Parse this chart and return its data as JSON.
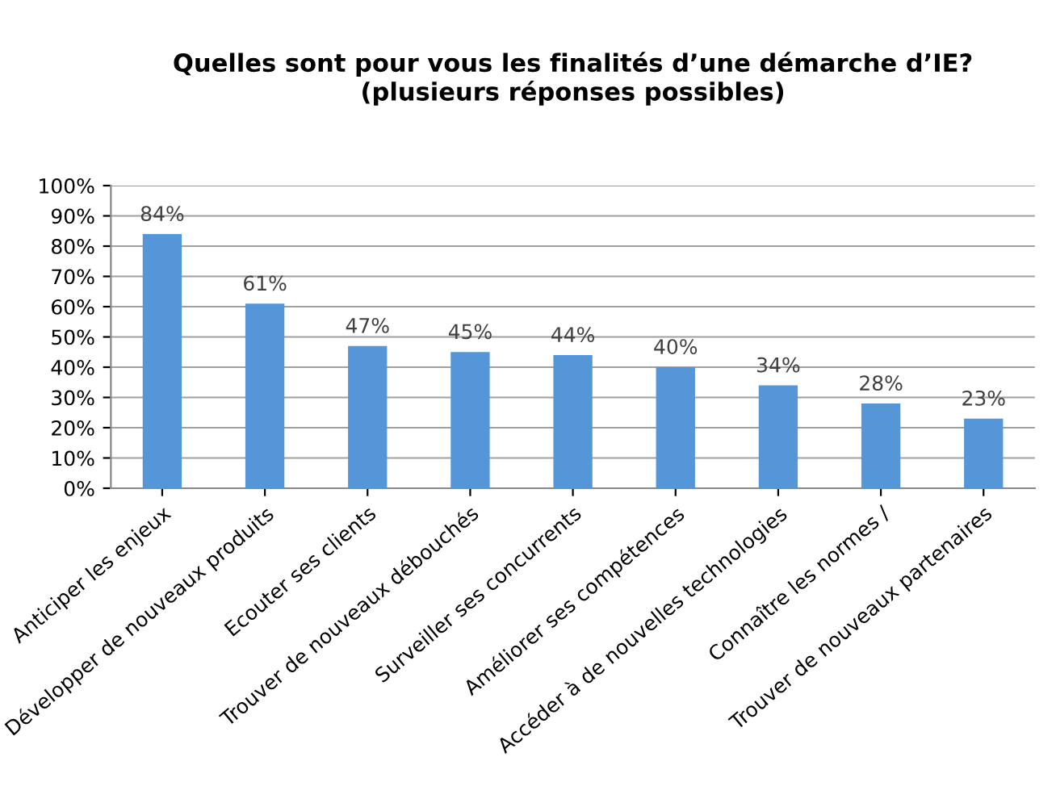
{
  "chart_data": {
    "type": "bar",
    "title": "Quelles sont pour vous les finalités d’une démarche d’IE?\n(plusieurs réponses possibles)",
    "categories": [
      "Anticiper les enjeux",
      "Développer de nouveaux produits",
      "Ecouter ses clients",
      "Trouver de nouveaux débouchés",
      "Surveiller ses concurrents",
      "Améliorer ses compétences",
      "Accéder à de nouvelles technologies",
      "Connaître les normes /",
      "Trouver de nouveaux partenaires"
    ],
    "values": [
      84,
      61,
      47,
      45,
      44,
      40,
      34,
      28,
      23
    ],
    "value_labels": [
      "84%",
      "61%",
      "47%",
      "45%",
      "44%",
      "40%",
      "34%",
      "28%",
      "23%"
    ],
    "color": "#5596d8",
    "ylim": [
      0,
      100
    ],
    "yticks": [
      {
        "value": 0,
        "label": "0%"
      },
      {
        "value": 10,
        "label": "10%"
      },
      {
        "value": 20,
        "label": "20%"
      },
      {
        "value": 30,
        "label": "30%"
      },
      {
        "value": 40,
        "label": "40%"
      },
      {
        "value": 50,
        "label": "50%"
      },
      {
        "value": 60,
        "label": "60%"
      },
      {
        "value": 70,
        "label": "70%"
      },
      {
        "value": 80,
        "label": "80%"
      },
      {
        "value": 90,
        "label": "90%"
      },
      {
        "value": 100,
        "label": "100%"
      }
    ],
    "grid": "y"
  }
}
